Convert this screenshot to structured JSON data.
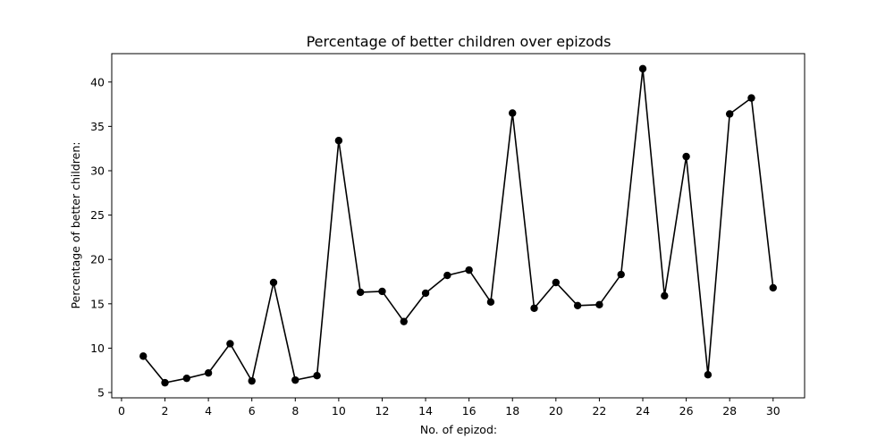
{
  "chart_data": {
    "type": "line",
    "title": "Percentage of better children over epizods",
    "xlabel": "No. of epizod:",
    "ylabel": "Percentage of better children:",
    "xlim": [
      -0.45,
      31.45
    ],
    "ylim": [
      4.4,
      43.2
    ],
    "xticks": [
      0,
      2,
      4,
      6,
      8,
      10,
      12,
      14,
      16,
      18,
      20,
      22,
      24,
      26,
      28,
      30
    ],
    "yticks": [
      5,
      10,
      15,
      20,
      25,
      30,
      35,
      40
    ],
    "grid": false,
    "legend": "none",
    "series": [
      {
        "color": "#000000",
        "marker": "circle",
        "x": [
          1,
          2,
          3,
          4,
          5,
          6,
          7,
          8,
          9,
          10,
          11,
          12,
          13,
          14,
          15,
          16,
          17,
          18,
          19,
          20,
          21,
          22,
          23,
          24,
          25,
          26,
          27,
          28,
          29,
          30
        ],
        "y": [
          9.1,
          6.1,
          6.6,
          7.2,
          10.5,
          6.3,
          17.4,
          6.4,
          6.9,
          33.4,
          16.3,
          16.4,
          13.0,
          16.2,
          18.2,
          18.8,
          15.2,
          36.5,
          14.5,
          17.4,
          14.8,
          14.9,
          18.3,
          41.5,
          15.9,
          31.6,
          7.0,
          36.4,
          38.2,
          16.8
        ]
      }
    ]
  }
}
